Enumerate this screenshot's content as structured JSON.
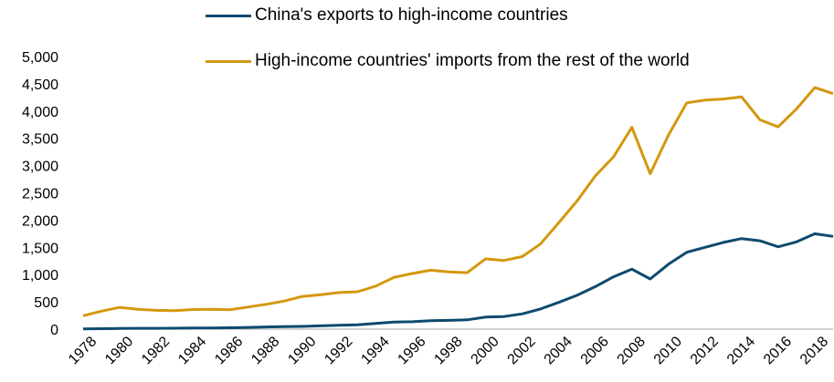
{
  "chart_data": {
    "type": "line",
    "title": "",
    "xlabel": "",
    "ylabel": "",
    "ylim": [
      0,
      5000
    ],
    "yticks": [
      0,
      500,
      1000,
      1500,
      2000,
      2500,
      3000,
      3500,
      4000,
      4500,
      5000
    ],
    "ytick_labels": [
      "0",
      "500",
      "1,000",
      "1,500",
      "2,000",
      "2,500",
      "3,000",
      "3,500",
      "4,000",
      "4,500",
      "5,000"
    ],
    "xlim": [
      1978,
      2019
    ],
    "xtick_labels": [
      "1978",
      "1980",
      "1982",
      "1984",
      "1986",
      "1988",
      "1990",
      "1992",
      "1994",
      "1996",
      "1998",
      "2000",
      "2002",
      "2004",
      "2006",
      "2008",
      "2010",
      "2012",
      "2014",
      "2016",
      "2018"
    ],
    "grid": false,
    "legend_position": "top",
    "x": [
      1978,
      1979,
      1980,
      1981,
      1982,
      1983,
      1984,
      1985,
      1986,
      1987,
      1988,
      1989,
      1990,
      1991,
      1992,
      1993,
      1994,
      1995,
      1996,
      1997,
      1998,
      1999,
      2000,
      2001,
      2002,
      2003,
      2004,
      2005,
      2006,
      2007,
      2008,
      2009,
      2010,
      2011,
      2012,
      2013,
      2014,
      2015,
      2016,
      2017,
      2018,
      2019
    ],
    "series": [
      {
        "name": "China's exports to high-income countries",
        "color": "#0e4a6e",
        "values": [
          5,
          8,
          12,
          15,
          15,
          16,
          20,
          22,
          25,
          32,
          40,
          45,
          50,
          60,
          70,
          80,
          105,
          130,
          135,
          155,
          160,
          170,
          220,
          230,
          280,
          370,
          490,
          620,
          780,
          960,
          1100,
          920,
          1190,
          1410,
          1500,
          1590,
          1660,
          1620,
          1510,
          1600,
          1750,
          1700
        ]
      },
      {
        "name": "High-income countries' imports from the rest of the world",
        "color": "#d4970f",
        "values": [
          245,
          330,
          400,
          365,
          345,
          340,
          360,
          365,
          355,
          405,
          455,
          515,
          600,
          630,
          670,
          685,
          790,
          950,
          1020,
          1080,
          1050,
          1035,
          1290,
          1260,
          1330,
          1560,
          1950,
          2350,
          2810,
          3160,
          3700,
          2850,
          3560,
          4150,
          4200,
          4220,
          4260,
          3840,
          3710,
          4040,
          4430,
          4320
        ]
      }
    ]
  }
}
